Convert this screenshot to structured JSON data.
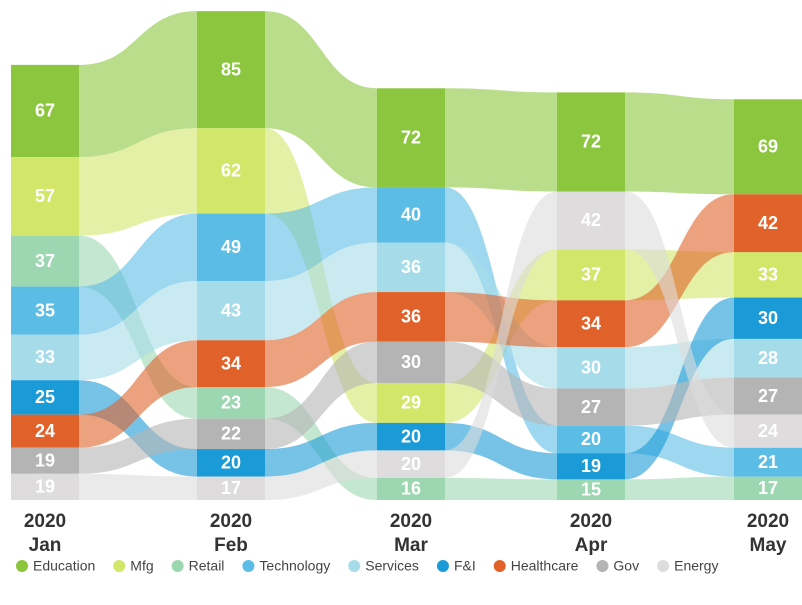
{
  "chart_data": {
    "type": "ribbon",
    "categories": [
      "2020 Jan",
      "2020 Feb",
      "2020 Mar",
      "2020 Apr",
      "2020 May"
    ],
    "series": [
      {
        "name": "Education",
        "color": "#8cc63f",
        "values": [
          67,
          85,
          72,
          72,
          69
        ]
      },
      {
        "name": "Mfg",
        "color": "#d2e66a",
        "values": [
          57,
          62,
          29,
          37,
          33
        ]
      },
      {
        "name": "Retail",
        "color": "#9dd7b2",
        "values": [
          37,
          23,
          16,
          15,
          17
        ]
      },
      {
        "name": "Technology",
        "color": "#5bbde6",
        "values": [
          35,
          49,
          40,
          20,
          21
        ]
      },
      {
        "name": "Services",
        "color": "#a6dcea",
        "values": [
          33,
          43,
          36,
          30,
          28
        ]
      },
      {
        "name": "F&I",
        "color": "#1a9bd7",
        "values": [
          25,
          20,
          20,
          19,
          30
        ]
      },
      {
        "name": "Healthcare",
        "color": "#e0622a",
        "values": [
          24,
          34,
          36,
          34,
          42
        ]
      },
      {
        "name": "Gov",
        "color": "#b5b4b4",
        "values": [
          19,
          22,
          30,
          27,
          27
        ]
      },
      {
        "name": "Energy",
        "color": "#dedcdc",
        "values": [
          19,
          17,
          20,
          42,
          24
        ]
      }
    ]
  }
}
